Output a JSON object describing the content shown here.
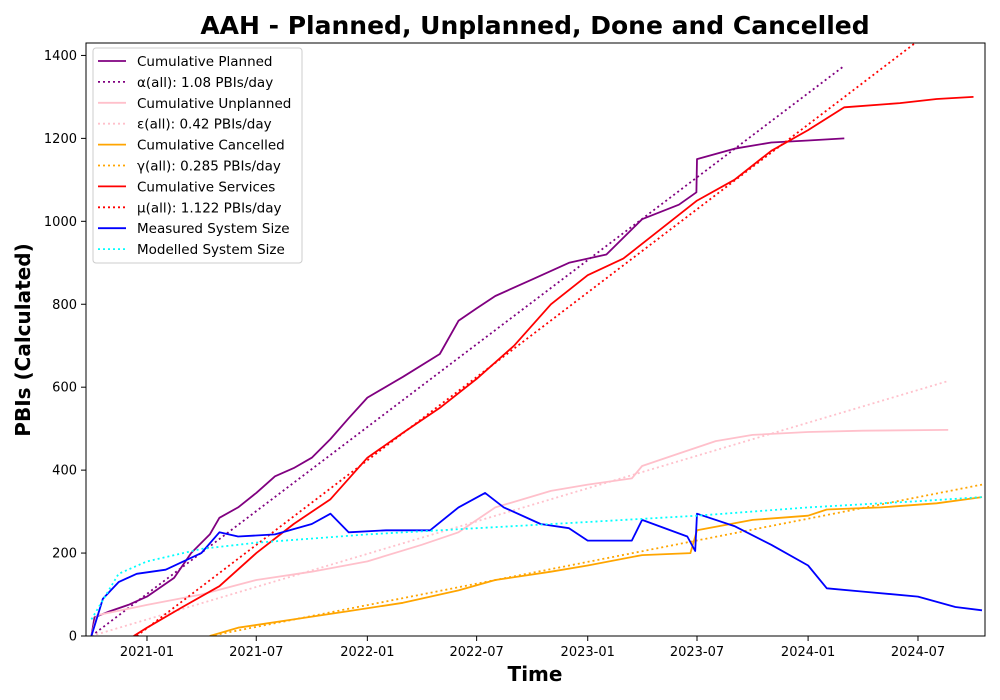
{
  "chart_data": {
    "type": "line",
    "title": "AAH - Planned, Unplanned, Done  and Cancelled",
    "xlabel": "Time",
    "ylabel": "PBIs (Calculated)",
    "xlim": [
      "2020-09-22",
      "2024-10-20"
    ],
    "ylim": [
      0,
      1430
    ],
    "x_ticks": [
      "2021-01",
      "2021-07",
      "2022-01",
      "2022-07",
      "2023-01",
      "2023-07",
      "2024-01",
      "2024-07"
    ],
    "y_ticks": [
      0,
      200,
      400,
      600,
      800,
      1000,
      1200,
      1400
    ],
    "grid": false,
    "legend_position": "upper-left",
    "series": [
      {
        "name": "Cumulative Planned",
        "color": "#800080",
        "style": "solid",
        "points": [
          [
            "2020-10-01",
            0
          ],
          [
            "2020-10-06",
            45
          ],
          [
            "2020-11-01",
            60
          ],
          [
            "2020-12-01",
            75
          ],
          [
            "2021-01-01",
            95
          ],
          [
            "2021-02-15",
            140
          ],
          [
            "2021-03-15",
            200
          ],
          [
            "2021-04-15",
            245
          ],
          [
            "2021-05-01",
            285
          ],
          [
            "2021-06-01",
            310
          ],
          [
            "2021-07-01",
            345
          ],
          [
            "2021-08-01",
            385
          ],
          [
            "2021-09-01",
            405
          ],
          [
            "2021-10-01",
            430
          ],
          [
            "2021-11-01",
            475
          ],
          [
            "2021-12-01",
            525
          ],
          [
            "2022-01-01",
            575
          ],
          [
            "2022-03-01",
            625
          ],
          [
            "2022-05-01",
            680
          ],
          [
            "2022-06-01",
            760
          ],
          [
            "2022-07-01",
            790
          ],
          [
            "2022-08-01",
            820
          ],
          [
            "2022-10-01",
            860
          ],
          [
            "2022-12-01",
            900
          ],
          [
            "2023-02-01",
            920
          ],
          [
            "2023-04-01",
            1005
          ],
          [
            "2023-06-01",
            1040
          ],
          [
            "2023-06-30",
            1070
          ],
          [
            "2023-07-01",
            1150
          ],
          [
            "2023-09-01",
            1175
          ],
          [
            "2023-11-01",
            1190
          ],
          [
            "2024-01-01",
            1195
          ],
          [
            "2024-03-01",
            1200
          ]
        ]
      },
      {
        "name": "α(all): 1.08 PBIs/day",
        "color": "#800080",
        "style": "dotted",
        "points": [
          [
            "2020-10-01",
            0
          ],
          [
            "2024-03-01",
            1375
          ]
        ]
      },
      {
        "name": "Cumulative Unplanned",
        "color": "#ffc0cb",
        "style": "solid",
        "points": [
          [
            "2020-10-01",
            0
          ],
          [
            "2020-10-10",
            50
          ],
          [
            "2021-01-01",
            75
          ],
          [
            "2021-04-01",
            100
          ],
          [
            "2021-07-01",
            135
          ],
          [
            "2021-10-01",
            155
          ],
          [
            "2022-01-01",
            180
          ],
          [
            "2022-04-01",
            220
          ],
          [
            "2022-06-01",
            250
          ],
          [
            "2022-08-01",
            310
          ],
          [
            "2022-11-01",
            350
          ],
          [
            "2023-01-01",
            365
          ],
          [
            "2023-03-15",
            380
          ],
          [
            "2023-04-01",
            410
          ],
          [
            "2023-06-01",
            440
          ],
          [
            "2023-08-01",
            470
          ],
          [
            "2023-10-01",
            485
          ],
          [
            "2024-01-01",
            492
          ],
          [
            "2024-04-01",
            495
          ],
          [
            "2024-08-20",
            497
          ]
        ]
      },
      {
        "name": "ε(all): 0.42 PBIs/day",
        "color": "#ffc0cb",
        "style": "dotted",
        "points": [
          [
            "2020-10-01",
            0
          ],
          [
            "2024-08-20",
            615
          ]
        ]
      },
      {
        "name": "Cumulative Cancelled",
        "color": "#ffa500",
        "style": "solid",
        "points": [
          [
            "2021-04-15",
            0
          ],
          [
            "2021-06-01",
            20
          ],
          [
            "2021-09-01",
            40
          ],
          [
            "2021-12-01",
            60
          ],
          [
            "2022-03-01",
            80
          ],
          [
            "2022-06-01",
            110
          ],
          [
            "2022-08-01",
            135
          ],
          [
            "2022-11-01",
            155
          ],
          [
            "2023-01-01",
            170
          ],
          [
            "2023-04-01",
            195
          ],
          [
            "2023-06-20",
            200
          ],
          [
            "2023-07-01",
            255
          ],
          [
            "2023-10-01",
            280
          ],
          [
            "2024-01-01",
            290
          ],
          [
            "2024-02-01",
            305
          ],
          [
            "2024-05-01",
            310
          ],
          [
            "2024-08-01",
            320
          ],
          [
            "2024-10-15",
            335
          ]
        ]
      },
      {
        "name": "γ(all): 0.285 PBIs/day",
        "color": "#ffa500",
        "style": "dotted",
        "points": [
          [
            "2021-04-15",
            0
          ],
          [
            "2024-10-15",
            365
          ]
        ]
      },
      {
        "name": "Cumulative Services",
        "color": "#ff0000",
        "style": "solid",
        "points": [
          [
            "2020-12-10",
            0
          ],
          [
            "2021-01-01",
            20
          ],
          [
            "2021-03-01",
            70
          ],
          [
            "2021-05-01",
            120
          ],
          [
            "2021-07-01",
            200
          ],
          [
            "2021-09-01",
            270
          ],
          [
            "2021-11-01",
            330
          ],
          [
            "2022-01-01",
            430
          ],
          [
            "2022-03-01",
            490
          ],
          [
            "2022-05-01",
            550
          ],
          [
            "2022-07-01",
            620
          ],
          [
            "2022-09-01",
            700
          ],
          [
            "2022-11-01",
            800
          ],
          [
            "2023-01-01",
            870
          ],
          [
            "2023-03-01",
            910
          ],
          [
            "2023-05-01",
            980
          ],
          [
            "2023-07-01",
            1050
          ],
          [
            "2023-09-01",
            1100
          ],
          [
            "2023-11-01",
            1170
          ],
          [
            "2024-01-01",
            1220
          ],
          [
            "2024-03-01",
            1275
          ],
          [
            "2024-06-01",
            1285
          ],
          [
            "2024-08-01",
            1295
          ],
          [
            "2024-10-01",
            1300
          ]
        ]
      },
      {
        "name": "μ(all): 1.122 PBIs/day",
        "color": "#ff0000",
        "style": "dotted",
        "points": [
          [
            "2020-12-15",
            0
          ],
          [
            "2024-07-01",
            1435
          ]
        ]
      },
      {
        "name": "Measured System Size",
        "color": "#0000ff",
        "style": "solid",
        "points": [
          [
            "2020-10-01",
            0
          ],
          [
            "2020-10-20",
            90
          ],
          [
            "2020-11-15",
            130
          ],
          [
            "2020-12-15",
            150
          ],
          [
            "2021-02-01",
            160
          ],
          [
            "2021-04-01",
            200
          ],
          [
            "2021-05-01",
            250
          ],
          [
            "2021-06-01",
            240
          ],
          [
            "2021-08-01",
            245
          ],
          [
            "2021-10-01",
            270
          ],
          [
            "2021-11-01",
            295
          ],
          [
            "2021-12-01",
            250
          ],
          [
            "2022-02-01",
            255
          ],
          [
            "2022-04-15",
            255
          ],
          [
            "2022-06-01",
            310
          ],
          [
            "2022-07-15",
            345
          ],
          [
            "2022-08-15",
            310
          ],
          [
            "2022-10-15",
            270
          ],
          [
            "2022-12-01",
            260
          ],
          [
            "2023-01-01",
            230
          ],
          [
            "2023-03-15",
            230
          ],
          [
            "2023-04-01",
            280
          ],
          [
            "2023-06-15",
            240
          ],
          [
            "2023-06-28",
            205
          ],
          [
            "2023-07-01",
            295
          ],
          [
            "2023-09-01",
            265
          ],
          [
            "2023-11-01",
            220
          ],
          [
            "2024-01-01",
            170
          ],
          [
            "2024-02-01",
            115
          ],
          [
            "2024-04-01",
            107
          ],
          [
            "2024-07-01",
            95
          ],
          [
            "2024-09-01",
            70
          ],
          [
            "2024-10-15",
            62
          ]
        ]
      },
      {
        "name": "Modelled System Size",
        "color": "#00ffff",
        "style": "dotted",
        "points": [
          [
            "2020-10-01",
            40
          ],
          [
            "2020-11-15",
            150
          ],
          [
            "2021-01-01",
            180
          ],
          [
            "2021-04-01",
            210
          ],
          [
            "2021-07-01",
            225
          ],
          [
            "2022-01-01",
            245
          ],
          [
            "2022-07-01",
            260
          ],
          [
            "2023-01-01",
            275
          ],
          [
            "2023-07-01",
            290
          ],
          [
            "2024-01-01",
            310
          ],
          [
            "2024-07-01",
            325
          ],
          [
            "2024-10-15",
            335
          ]
        ]
      }
    ]
  }
}
